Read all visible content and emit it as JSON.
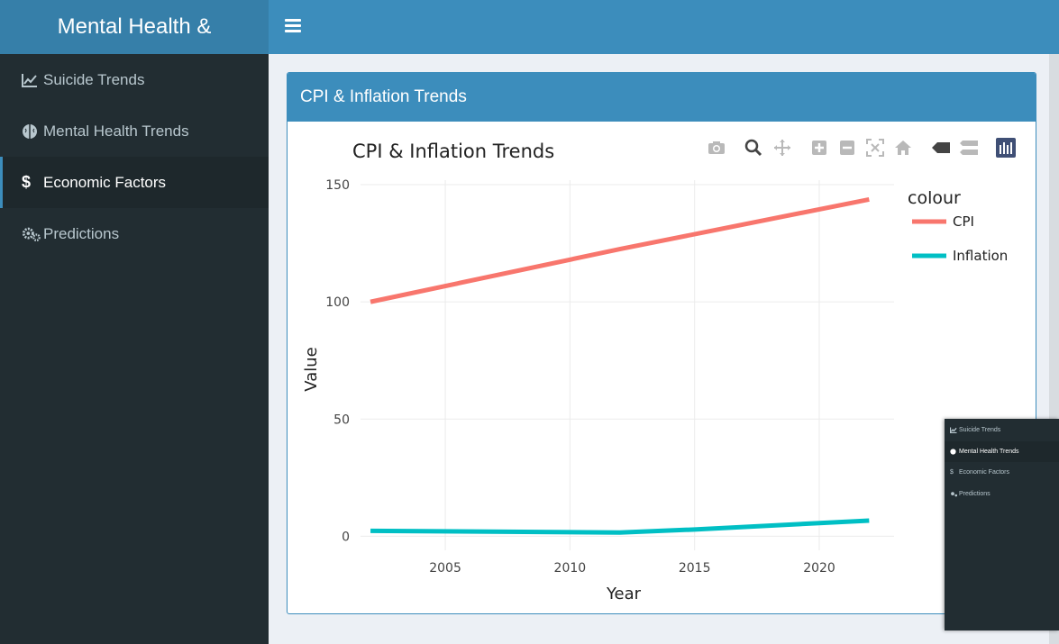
{
  "app": {
    "brand": "Mental Health &"
  },
  "sidebar": {
    "items": [
      {
        "label": "Suicide Trends",
        "icon": "line-chart-icon"
      },
      {
        "label": "Mental Health Trends",
        "icon": "brain-icon"
      },
      {
        "label": "Economic Factors",
        "icon": "dollar-icon",
        "active": true
      },
      {
        "label": "Predictions",
        "icon": "gears-icon"
      }
    ]
  },
  "box": {
    "title": "CPI & Inflation Trends"
  },
  "modebar": [
    "camera-icon",
    "zoom-icon",
    "pan-icon",
    "zoom-in-icon",
    "zoom-out-icon",
    "autoscale-icon",
    "home-icon",
    "hover-closest-icon",
    "hover-compare-icon",
    "plotly-logo-icon"
  ],
  "colors": {
    "accent": "#3c8dbc",
    "brand": "#367fa9",
    "sidebar": "#222d32",
    "cpi": "#F8766D",
    "inflation": "#00BFC4"
  },
  "chart_data": {
    "type": "line",
    "title": "CPI & Inflation Trends",
    "xlabel": "Year",
    "ylabel": "Value",
    "xlim": [
      2001.6,
      2023
    ],
    "ylim": [
      -6,
      150
    ],
    "xticks": [
      "2005",
      "2010",
      "2015",
      "2020"
    ],
    "yticks": [
      "0",
      "50",
      "100",
      "150"
    ],
    "legend_title": "colour",
    "legend_position": "right",
    "grid": true,
    "series": [
      {
        "name": "CPI",
        "color": "#F8766D",
        "x": [
          2002,
          2012,
          2022
        ],
        "y": [
          100,
          122.5,
          143.7
        ]
      },
      {
        "name": "Inflation",
        "color": "#00BFC4",
        "x": [
          2002,
          2012,
          2015,
          2022
        ],
        "y": [
          2.3,
          1.6,
          2.9,
          6.7
        ]
      }
    ]
  },
  "overlay": {
    "items": [
      {
        "label": "Suicide Trends"
      },
      {
        "label": "Mental Health Trends",
        "active": true
      },
      {
        "label": "Economic Factors"
      },
      {
        "label": "Predictions"
      }
    ]
  }
}
